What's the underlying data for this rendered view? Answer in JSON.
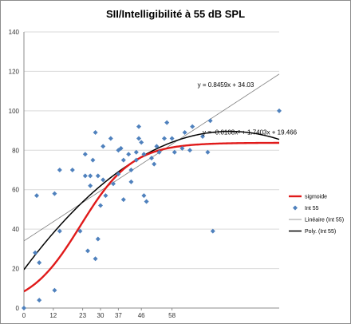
{
  "chart_data": {
    "type": "scatter",
    "title": "SII/Intelligibilité à 55 dB SPL",
    "xlabel": "",
    "ylabel": "",
    "xlim": [
      0,
      100
    ],
    "ylim": [
      0,
      140
    ],
    "x_tick_labels": [
      "0",
      "12",
      "23",
      "30",
      "37",
      "46",
      "58"
    ],
    "x_tick_values": [
      0,
      11.5,
      23,
      30,
      37,
      46,
      58
    ],
    "y_ticks": [
      0,
      20,
      40,
      60,
      80,
      100,
      120,
      140
    ],
    "grid": "horizontal",
    "legend_position": "right",
    "series": [
      {
        "name": "Int 55",
        "kind": "points",
        "color": "#4f81bd",
        "marker": "diamond",
        "points": [
          [
            0,
            0
          ],
          [
            4.4,
            28
          ],
          [
            5,
            57
          ],
          [
            6,
            23
          ],
          [
            6,
            4
          ],
          [
            12,
            9
          ],
          [
            12,
            58
          ],
          [
            14,
            70
          ],
          [
            14,
            39
          ],
          [
            19,
            70
          ],
          [
            22,
            39
          ],
          [
            24,
            67
          ],
          [
            24,
            78
          ],
          [
            25,
            29
          ],
          [
            26,
            67
          ],
          [
            26,
            62
          ],
          [
            27,
            75
          ],
          [
            28,
            89
          ],
          [
            28,
            25
          ],
          [
            29,
            35
          ],
          [
            29,
            67
          ],
          [
            30,
            52
          ],
          [
            31,
            65
          ],
          [
            31,
            82
          ],
          [
            32,
            57
          ],
          [
            34,
            86
          ],
          [
            35,
            63
          ],
          [
            37,
            68
          ],
          [
            37,
            80
          ],
          [
            38,
            81
          ],
          [
            39,
            55
          ],
          [
            39,
            75
          ],
          [
            41,
            78
          ],
          [
            42,
            64
          ],
          [
            42,
            70
          ],
          [
            44,
            79
          ],
          [
            44,
            75
          ],
          [
            45,
            86
          ],
          [
            45,
            92
          ],
          [
            46,
            84
          ],
          [
            47,
            78
          ],
          [
            47,
            57
          ],
          [
            48,
            54
          ],
          [
            50,
            76
          ],
          [
            51,
            73
          ],
          [
            52,
            82
          ],
          [
            53,
            79
          ],
          [
            55,
            86
          ],
          [
            56,
            94
          ],
          [
            58,
            86
          ],
          [
            59,
            79
          ],
          [
            62,
            81
          ],
          [
            63,
            89
          ],
          [
            65,
            80
          ],
          [
            66,
            92
          ],
          [
            70,
            87
          ],
          [
            72,
            79
          ],
          [
            73,
            95
          ],
          [
            74,
            39
          ],
          [
            100,
            100
          ]
        ]
      },
      {
        "name": "sigmoide",
        "kind": "sigmoid",
        "color": "#e01a1a",
        "params": {
          "L": 83.8,
          "k": 0.0987,
          "x0": 22.2,
          "y0": 0
        }
      },
      {
        "name": "Linéaire (Int 55)",
        "kind": "linear",
        "color": "#7f7f7f",
        "slope": 0.8459,
        "intercept": 34.03
      },
      {
        "name": "Poly. (Int 55)",
        "kind": "poly2",
        "color": "#000000",
        "a": -0.0108,
        "b": 1.7403,
        "c": 19.466
      }
    ],
    "annotations": [
      {
        "text": "y = 0.8459x + 34.03",
        "x": 68,
        "y": 112
      },
      {
        "text": "y = -0.0108x² + 1.7403x + 19.466",
        "x": 70,
        "y": 88
      }
    ],
    "legend_order": [
      "sigmoide",
      "Int 55",
      "Linéaire (Int 55)",
      "Poly. (Int 55)"
    ]
  }
}
